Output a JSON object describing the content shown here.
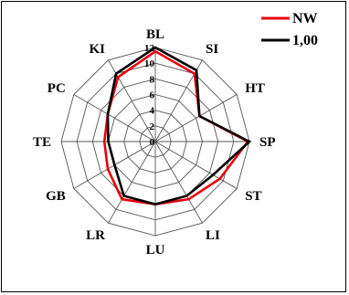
{
  "chart_data": {
    "type": "radar",
    "categories": [
      "BL",
      "SI",
      "HT",
      "SP",
      "ST",
      "LI",
      "LU",
      "LR",
      "GB",
      "TE",
      "PC",
      "KI"
    ],
    "r_ticks": [
      "0",
      "2",
      "4",
      "6",
      "8",
      "10",
      "12"
    ],
    "rlim": [
      0,
      12
    ],
    "grid": true,
    "legend_position": "top-right",
    "series": [
      {
        "name": "NW",
        "color": "#e8000b",
        "values": [
          11.5,
          10.0,
          6.5,
          11.8,
          9.5,
          8.5,
          8.0,
          8.5,
          7.0,
          6.5,
          7.0,
          9.5
        ]
      },
      {
        "name": "1,00",
        "color": "#000000",
        "values": [
          12.0,
          10.5,
          6.5,
          12.0,
          8.5,
          8.0,
          8.0,
          8.0,
          6.0,
          6.0,
          7.0,
          10.0
        ]
      }
    ]
  }
}
